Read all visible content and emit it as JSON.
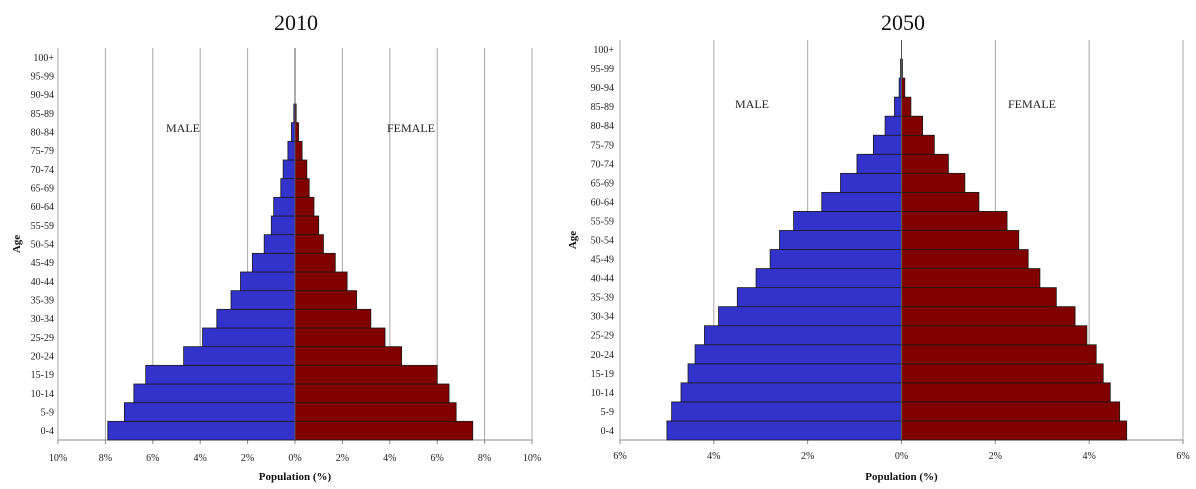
{
  "chart_data": [
    {
      "type": "bar",
      "orientation": "horizontal",
      "layout": "population-pyramid",
      "title": "2010",
      "xlabel": "Population (%)",
      "ylabel": "Age",
      "left_label": "MALE",
      "right_label": "FEMALE",
      "xlim": [
        -10,
        10
      ],
      "x_ticks": [
        "10%",
        "8%",
        "6%",
        "4%",
        "2%",
        "0%",
        "2%",
        "4%",
        "6%",
        "8%",
        "10%"
      ],
      "grid": "vertical",
      "categories": [
        "0-4",
        "5-9",
        "10-14",
        "15-19",
        "20-24",
        "25-29",
        "30-34",
        "35-39",
        "40-44",
        "45-49",
        "50-54",
        "55-59",
        "60-64",
        "65-69",
        "70-74",
        "75-79",
        "80-84",
        "85-89",
        "90-94",
        "95-99",
        "100+"
      ],
      "series": [
        {
          "name": "MALE",
          "color": "#3333cc",
          "values": [
            7.9,
            7.2,
            6.8,
            6.3,
            4.7,
            3.9,
            3.3,
            2.7,
            2.3,
            1.8,
            1.3,
            1.0,
            0.9,
            0.6,
            0.5,
            0.3,
            0.15,
            0.05,
            0,
            0,
            0
          ]
        },
        {
          "name": "FEMALE",
          "color": "#800000",
          "values": [
            7.5,
            6.8,
            6.5,
            6.0,
            4.5,
            3.8,
            3.2,
            2.6,
            2.2,
            1.7,
            1.2,
            1.0,
            0.8,
            0.6,
            0.5,
            0.3,
            0.15,
            0.05,
            0,
            0,
            0
          ]
        }
      ]
    },
    {
      "type": "bar",
      "orientation": "horizontal",
      "layout": "population-pyramid",
      "title": "2050",
      "xlabel": "Population (%)",
      "ylabel": "Age",
      "left_label": "MALE",
      "right_label": "FEMALE",
      "xlim": [
        -6,
        6
      ],
      "x_ticks": [
        "6%",
        "4%",
        "2%",
        "0%",
        "2%",
        "4%",
        "6%"
      ],
      "grid": "vertical",
      "categories": [
        "0-4",
        "5-9",
        "10-14",
        "15-19",
        "20-24",
        "25-29",
        "30-34",
        "35-39",
        "40-44",
        "45-49",
        "50-54",
        "55-59",
        "60-64",
        "65-69",
        "70-74",
        "75-79",
        "80-84",
        "85-89",
        "90-94",
        "95-99",
        "100+"
      ],
      "series": [
        {
          "name": "MALE",
          "color": "#3333cc",
          "values": [
            5.0,
            4.9,
            4.7,
            4.55,
            4.4,
            4.2,
            3.9,
            3.5,
            3.1,
            2.8,
            2.6,
            2.3,
            1.7,
            1.3,
            0.95,
            0.6,
            0.35,
            0.15,
            0.05,
            0.02,
            0
          ]
        },
        {
          "name": "FEMALE",
          "color": "#800000",
          "values": [
            4.8,
            4.65,
            4.45,
            4.3,
            4.15,
            3.95,
            3.7,
            3.3,
            2.95,
            2.7,
            2.5,
            2.25,
            1.65,
            1.35,
            1.0,
            0.7,
            0.45,
            0.2,
            0.07,
            0.02,
            0
          ]
        }
      ]
    }
  ]
}
